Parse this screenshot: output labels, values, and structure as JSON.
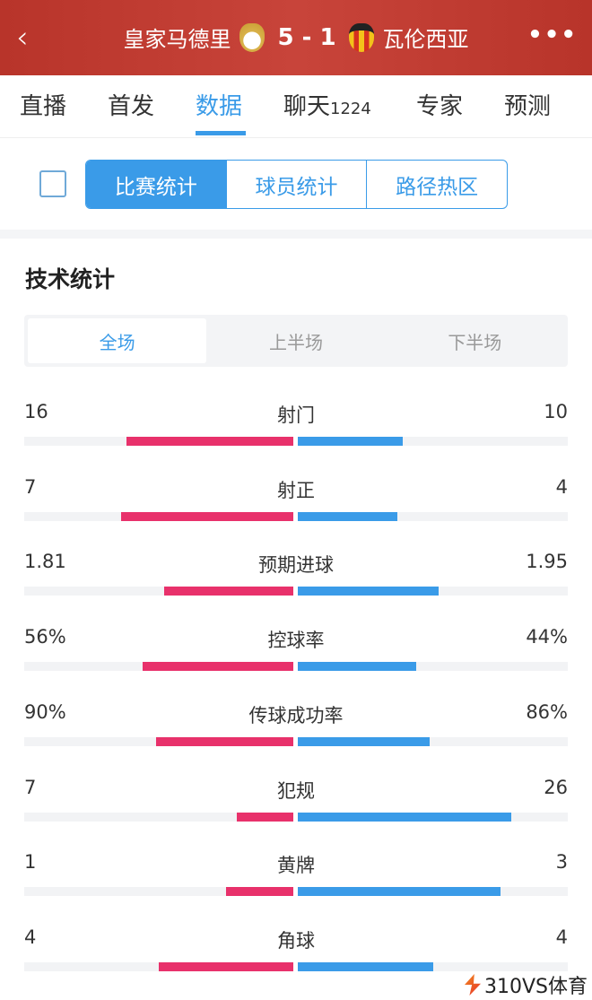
{
  "header": {
    "home": "皇家马德里",
    "score": "5 - 1",
    "away": "瓦伦西亚",
    "back_icon": "chevron-left-icon",
    "more_icon": "more-icon"
  },
  "tabs": [
    {
      "label": "直播"
    },
    {
      "label": "首发"
    },
    {
      "label": "数据",
      "active": true
    },
    {
      "label": "聊天",
      "count": "1224"
    },
    {
      "label": "专家"
    },
    {
      "label": "预测"
    }
  ],
  "segments": [
    "比赛统计",
    "球员统计",
    "路径热区"
  ],
  "section_title": "技术统计",
  "periods": [
    "全场",
    "上半场",
    "下半场"
  ],
  "colors": {
    "home": "#e8316b",
    "away": "#3a9be8",
    "header": "#c0392b"
  },
  "stats": [
    {
      "name": "射门",
      "home": "16",
      "away": "10",
      "home_fill": 0.62,
      "away_fill": 0.39
    },
    {
      "name": "射正",
      "home": "7",
      "away": "4",
      "home_fill": 0.64,
      "away_fill": 0.37
    },
    {
      "name": "预期进球",
      "home": "1.81",
      "away": "1.95",
      "home_fill": 0.48,
      "away_fill": 0.52
    },
    {
      "name": "控球率",
      "home": "56%",
      "away": "44%",
      "home_fill": 0.56,
      "away_fill": 0.44
    },
    {
      "name": "传球成功率",
      "home": "90%",
      "away": "86%",
      "home_fill": 0.51,
      "away_fill": 0.49
    },
    {
      "name": "犯规",
      "home": "7",
      "away": "26",
      "home_fill": 0.21,
      "away_fill": 0.79
    },
    {
      "name": "黄牌",
      "home": "1",
      "away": "3",
      "home_fill": 0.25,
      "away_fill": 0.75
    },
    {
      "name": "角球",
      "home": "4",
      "away": "4",
      "home_fill": 0.5,
      "away_fill": 0.5
    }
  ],
  "watermark": "310VS体育"
}
